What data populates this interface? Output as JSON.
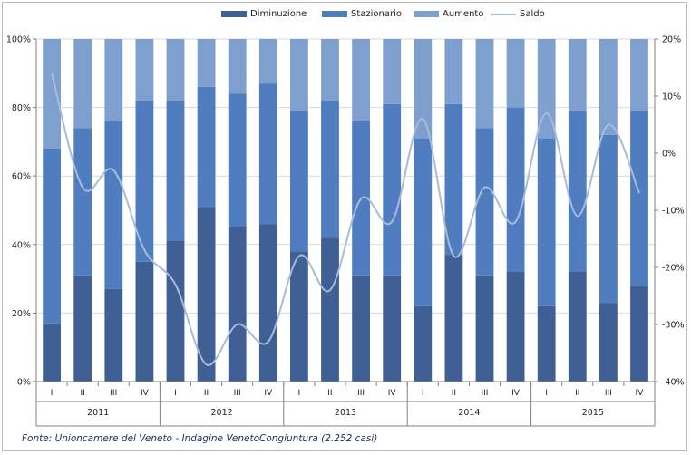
{
  "colors": {
    "diminuzione": "#3f5f95",
    "stazionario": "#4f7dbf",
    "aumento": "#7f9fcf",
    "saldo": "#a8bbd8",
    "grid": "#d9d9d9",
    "axis": "#808080",
    "text": "#222222"
  },
  "source_text": "Fonte: Unioncamere del Veneto - Indagine VenetoCongiuntura (2.252 casi)",
  "chart_data": {
    "type": "bar",
    "stacked": "percent",
    "legend_position": "top",
    "grid": true,
    "title": "",
    "xlabel": "",
    "ylabel": "",
    "categories": [
      "I",
      "II",
      "III",
      "IV",
      "I",
      "II",
      "III",
      "IV",
      "I",
      "II",
      "III",
      "IV",
      "I",
      "II",
      "III",
      "IV",
      "I",
      "II",
      "III",
      "IV"
    ],
    "groups": [
      {
        "label": "2011",
        "span": 4
      },
      {
        "label": "2012",
        "span": 4
      },
      {
        "label": "2013",
        "span": 4
      },
      {
        "label": "2014",
        "span": 4
      },
      {
        "label": "2015",
        "span": 4
      }
    ],
    "ylim": [
      0,
      100
    ],
    "yticks": [
      "0%",
      "20%",
      "40%",
      "60%",
      "80%",
      "100%"
    ],
    "y2lim": [
      -40,
      20
    ],
    "y2ticks": [
      "-40%",
      "-30%",
      "-20%",
      "-10%",
      "0%",
      "10%",
      "20%"
    ],
    "series": [
      {
        "name": "Diminuzione",
        "type": "bar",
        "values": [
          17,
          31,
          27,
          35,
          41,
          51,
          45,
          46,
          38,
          42,
          31,
          31,
          22,
          37,
          31,
          32,
          22,
          32,
          23,
          28
        ]
      },
      {
        "name": "Stazionario",
        "type": "bar",
        "values": [
          51,
          43,
          49,
          47,
          41,
          35,
          39,
          41,
          41,
          40,
          45,
          50,
          49,
          44,
          43,
          48,
          49,
          47,
          49,
          51
        ]
      },
      {
        "name": "Aumento",
        "type": "bar",
        "values": [
          32,
          26,
          24,
          18,
          18,
          14,
          16,
          13,
          21,
          18,
          24,
          19,
          29,
          19,
          26,
          20,
          29,
          21,
          28,
          21
        ]
      },
      {
        "name": "Saldo",
        "type": "line",
        "axis": "secondary",
        "values": [
          14,
          -6,
          -3,
          -17,
          -23,
          -37,
          -30,
          -33,
          -18,
          -24,
          -8,
          -12,
          6,
          -18,
          -6,
          -12,
          7,
          -11,
          5,
          -7
        ]
      }
    ]
  }
}
